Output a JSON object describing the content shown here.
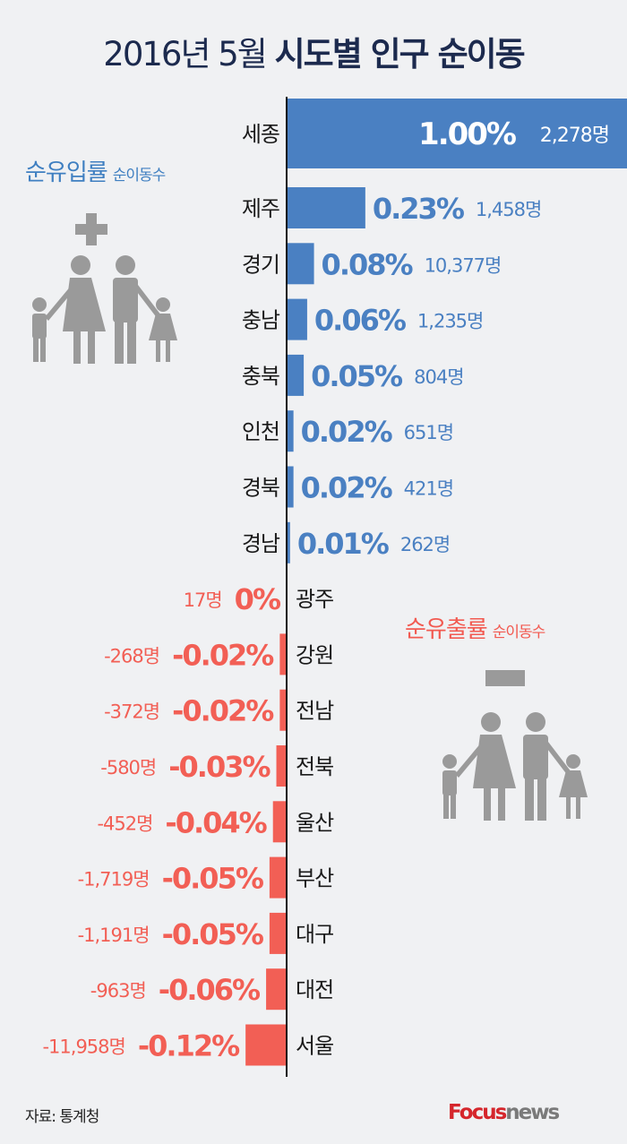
{
  "title": {
    "normal": "2016년 5월 ",
    "bold": "시도별 인구 순이동"
  },
  "legend_in": {
    "label": "순유입률",
    "sub": "순이동수"
  },
  "legend_out": {
    "label": "순유출률",
    "sub": "순이동수"
  },
  "source": "자료: 통계청",
  "logo": {
    "brand1": "Focus",
    "brand2": "news"
  },
  "colors": {
    "positive": "#4a80c2",
    "negative": "#f25f55",
    "title": "#1c2a4e",
    "icon": "#9a9a9a",
    "background": "#f0f1f3"
  },
  "chart_data": {
    "type": "bar",
    "orientation": "horizontal",
    "categories": [
      "세종",
      "제주",
      "경기",
      "충남",
      "충북",
      "인천",
      "경북",
      "경남",
      "광주",
      "강원",
      "전남",
      "전북",
      "울산",
      "부산",
      "대구",
      "대전",
      "서울"
    ],
    "rate_labels": [
      "1.00%",
      "0.23%",
      "0.08%",
      "0.06%",
      "0.05%",
      "0.02%",
      "0.02%",
      "0.01%",
      "0%",
      "-0.02%",
      "-0.02%",
      "-0.03%",
      "-0.04%",
      "-0.05%",
      "-0.05%",
      "-0.06%",
      "-0.12%"
    ],
    "values": [
      1.0,
      0.23,
      0.08,
      0.06,
      0.05,
      0.02,
      0.02,
      0.01,
      0,
      -0.02,
      -0.02,
      -0.03,
      -0.04,
      -0.05,
      -0.05,
      -0.06,
      -0.12
    ],
    "counts": [
      "2,278명",
      "1,458명",
      "10,377명",
      "1,235명",
      "804명",
      "651명",
      "421명",
      "262명",
      "17명",
      "-268명",
      "-372명",
      "-580명",
      "-452명",
      "-1,719명",
      "-1,191명",
      "-963명",
      "-11,958명"
    ],
    "unit": "%"
  }
}
